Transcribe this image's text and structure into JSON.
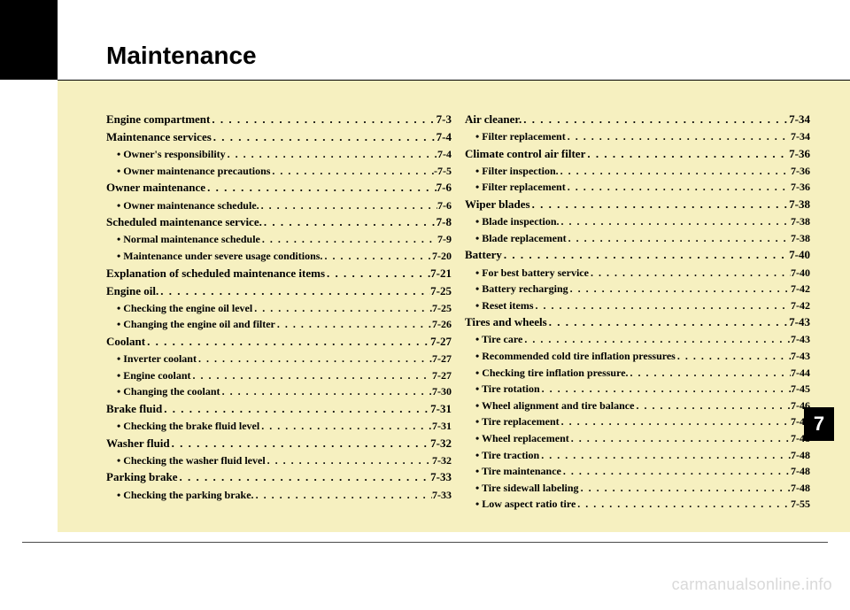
{
  "title": "Maintenance",
  "chapter_tab": "7",
  "watermark": "carmanualsonline.info",
  "colors": {
    "page_bg": "#ffffff",
    "content_bg": "#f6f0c0",
    "text": "#000000",
    "rule": "#000000",
    "bottom_rule": "#4a4a4a",
    "tab_bg": "#000000",
    "tab_fg": "#ffffff",
    "watermark": "#d9d9d9"
  },
  "typography": {
    "title_fontsize": 28,
    "section_fontsize": 13,
    "sub_fontsize": 12,
    "watermark_fontsize": 18,
    "tab_fontsize": 22
  },
  "toc": {
    "left": [
      {
        "type": "section",
        "label": "Engine compartment",
        "page": "7-3"
      },
      {
        "type": "section",
        "label": "Maintenance services",
        "page": "7-4"
      },
      {
        "type": "sub",
        "label": "• Owner's responsibility",
        "page": "7-4"
      },
      {
        "type": "sub",
        "label": "• Owner maintenance precautions",
        "page": "-7-5"
      },
      {
        "type": "section",
        "label": "Owner maintenance",
        "page": "7-6"
      },
      {
        "type": "sub",
        "label": "• Owner maintenance schedule.",
        "page": "7-6"
      },
      {
        "type": "section",
        "label": "Scheduled maintenance service.",
        "page": "7-8"
      },
      {
        "type": "sub",
        "label": "• Normal maintenance schedule",
        "page": "7-9"
      },
      {
        "type": "sub",
        "label": "• Maintenance under severe usage conditions.",
        "page": "7-20"
      },
      {
        "type": "section",
        "label": "Explanation of scheduled maintenance items",
        "page": "7-21"
      },
      {
        "type": "section",
        "label": "Engine oil.",
        "page": "7-25"
      },
      {
        "type": "sub",
        "label": "• Checking the engine oil level",
        "page": "7-25"
      },
      {
        "type": "sub",
        "label": "• Changing the engine oil and filter",
        "page": "7-26"
      },
      {
        "type": "section",
        "label": "Coolant",
        "page": "7-27"
      },
      {
        "type": "sub",
        "label": "• Inverter coolant",
        "page": "7-27"
      },
      {
        "type": "sub",
        "label": "• Engine coolant",
        "page": "7-27"
      },
      {
        "type": "sub",
        "label": "• Changing the coolant",
        "page": "7-30"
      },
      {
        "type": "section",
        "label": "Brake fluid",
        "page": "7-31"
      },
      {
        "type": "sub",
        "label": "• Checking the brake fluid level",
        "page": "7-31"
      },
      {
        "type": "section",
        "label": "Washer fluid",
        "page": "7-32"
      },
      {
        "type": "sub",
        "label": "• Checking the washer fluid level",
        "page": "7-32"
      },
      {
        "type": "section",
        "label": "Parking brake",
        "page": "7-33"
      },
      {
        "type": "sub",
        "label": "• Checking the parking brake.",
        "page": "7-33"
      }
    ],
    "right": [
      {
        "type": "section",
        "label": "Air cleaner.",
        "page": "7-34"
      },
      {
        "type": "sub",
        "label": "• Filter replacement",
        "page": "7-34"
      },
      {
        "type": "section",
        "label": "Climate control air filter",
        "page": "7-36"
      },
      {
        "type": "sub",
        "label": "• Filter inspection.",
        "page": "7-36"
      },
      {
        "type": "sub",
        "label": "• Filter replacement",
        "page": "7-36"
      },
      {
        "type": "section",
        "label": "Wiper blades",
        "page": "7-38"
      },
      {
        "type": "sub",
        "label": "• Blade inspection.",
        "page": "7-38"
      },
      {
        "type": "sub",
        "label": "• Blade replacement",
        "page": "7-38"
      },
      {
        "type": "section",
        "label": "Battery",
        "page": "7-40"
      },
      {
        "type": "sub",
        "label": "• For best battery service",
        "page": "7-40"
      },
      {
        "type": "sub",
        "label": "• Battery recharging",
        "page": "7-42"
      },
      {
        "type": "sub",
        "label": "• Reset items",
        "page": "7-42"
      },
      {
        "type": "section",
        "label": "Tires and wheels",
        "page": "7-43"
      },
      {
        "type": "sub",
        "label": "• Tire care",
        "page": "7-43"
      },
      {
        "type": "sub",
        "label": "• Recommended cold tire inflation pressures",
        "page": "7-43"
      },
      {
        "type": "sub",
        "label": "• Checking tire inflation pressure.",
        "page": "7-44"
      },
      {
        "type": "sub",
        "label": "• Tire rotation",
        "page": "7-45"
      },
      {
        "type": "sub",
        "label": "• Wheel alignment and tire balance",
        "page": "7-46"
      },
      {
        "type": "sub",
        "label": "• Tire replacement",
        "page": "7-47"
      },
      {
        "type": "sub",
        "label": "• Wheel replacement",
        "page": "7-48"
      },
      {
        "type": "sub",
        "label": "• Tire traction",
        "page": "7-48"
      },
      {
        "type": "sub",
        "label": "• Tire maintenance",
        "page": "7-48"
      },
      {
        "type": "sub",
        "label": "• Tire sidewall labeling",
        "page": "7-48"
      },
      {
        "type": "sub",
        "label": "• Low aspect ratio tire",
        "page": "7-55"
      }
    ]
  }
}
